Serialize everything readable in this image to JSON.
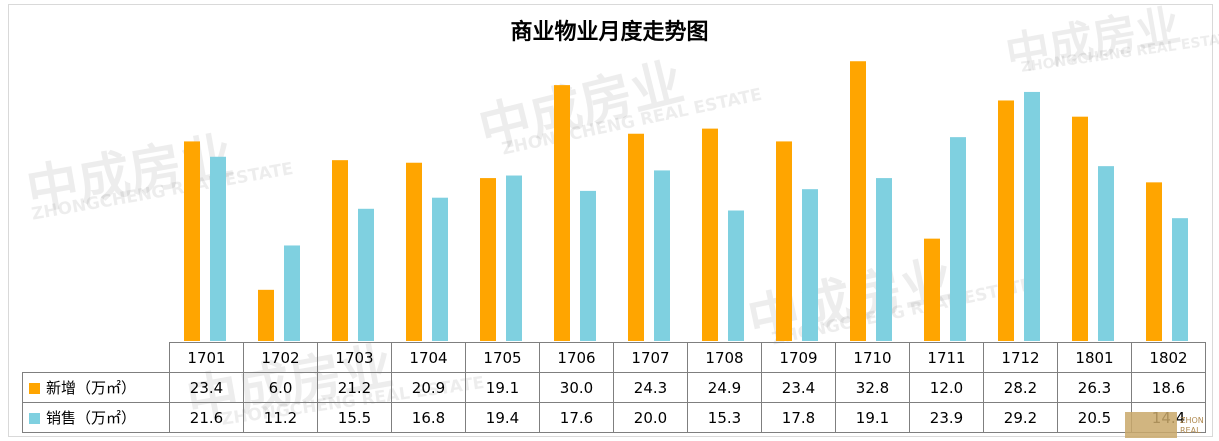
{
  "chart_data": {
    "type": "bar",
    "title": "商业物业月度走势图",
    "categories": [
      "1701",
      "1702",
      "1703",
      "1704",
      "1705",
      "1706",
      "1707",
      "1708",
      "1709",
      "1710",
      "1711",
      "1712",
      "1801",
      "1802"
    ],
    "series": [
      {
        "name": "新增（万㎡）",
        "color": "#ffa500",
        "values": [
          23.4,
          6.0,
          21.2,
          20.9,
          19.1,
          30.0,
          24.3,
          24.9,
          23.4,
          32.8,
          12.0,
          28.2,
          26.3,
          18.6
        ],
        "labels": [
          "23.4",
          "6.0",
          "21.2",
          "20.9",
          "19.1",
          "30.0",
          "24.3",
          "24.9",
          "23.4",
          "32.8",
          "12.0",
          "28.2",
          "26.3",
          "18.6"
        ]
      },
      {
        "name": "销售（万㎡）",
        "color": "#7fd0e0",
        "values": [
          21.6,
          11.2,
          15.5,
          16.8,
          19.4,
          17.6,
          20.0,
          15.3,
          17.8,
          19.1,
          23.9,
          29.2,
          20.5,
          14.4
        ],
        "labels": [
          "21.6",
          "11.2",
          "15.5",
          "16.8",
          "19.4",
          "17.6",
          "20.0",
          "15.3",
          "17.8",
          "19.1",
          "23.9",
          "29.2",
          "20.5",
          "14.4"
        ]
      }
    ],
    "ylim": [
      0,
      34
    ],
    "grid": false,
    "legend": "data-table"
  },
  "watermark": {
    "cn": "中成房业",
    "en": "ZHONGCHENG REAL ESTATE"
  }
}
